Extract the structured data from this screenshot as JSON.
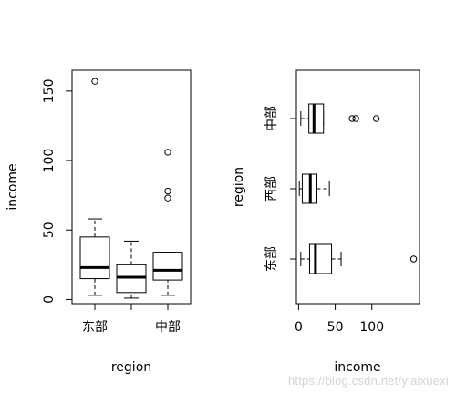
{
  "chart_data": [
    {
      "type": "box",
      "orientation": "vertical",
      "xlabel": "region",
      "ylabel": "income",
      "ylim": [
        -3,
        165
      ],
      "yticks": [
        0,
        50,
        100,
        150
      ],
      "tick_labels": [
        "东部",
        "",
        "中部"
      ],
      "groups": [
        {
          "label": "东部",
          "whisker_low": 3,
          "q1": 15,
          "median": 23,
          "q3": 45,
          "whisker_high": 58,
          "outliers": [
            157
          ]
        },
        {
          "label": "西部",
          "whisker_low": 1,
          "q1": 5,
          "median": 16,
          "q3": 25,
          "whisker_high": 42,
          "outliers": []
        },
        {
          "label": "中部",
          "whisker_low": 3,
          "q1": 14,
          "median": 21,
          "q3": 34,
          "whisker_high": 34,
          "outliers": [
            73,
            78,
            106
          ]
        }
      ]
    },
    {
      "type": "box",
      "orientation": "horizontal",
      "xlabel": "income",
      "ylabel": "region",
      "xlim": [
        -3,
        165
      ],
      "xticks": [
        0,
        50,
        100
      ],
      "groups": [
        {
          "label": "东部",
          "whisker_low": 3,
          "q1": 15,
          "median": 23,
          "q3": 45,
          "whisker_high": 58,
          "outliers": [
            157
          ]
        },
        {
          "label": "西部",
          "whisker_low": 1,
          "q1": 5,
          "median": 16,
          "q3": 25,
          "whisker_high": 42,
          "outliers": []
        },
        {
          "label": "中部",
          "whisker_low": 3,
          "q1": 14,
          "median": 21,
          "q3": 34,
          "whisker_high": 34,
          "outliers": [
            73,
            78,
            106
          ]
        }
      ]
    }
  ],
  "watermark": "https://blog.csdn.net/yiaixuexi"
}
